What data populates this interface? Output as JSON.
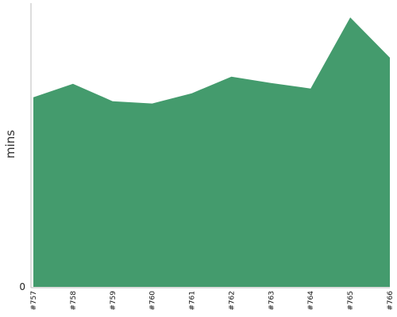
{
  "chart_data": {
    "type": "area",
    "categories": [
      "#757",
      "#758",
      "#759",
      "#760",
      "#761",
      "#762",
      "#763",
      "#764",
      "#765",
      "#766"
    ],
    "values": [
      240,
      257,
      235,
      232,
      245,
      266,
      258,
      251,
      341,
      290
    ],
    "title": "",
    "xlabel": "",
    "ylabel": "mins",
    "ylim": [
      0,
      358
    ],
    "y_tick_labels": [
      "0"
    ],
    "grid": false,
    "legend": "none",
    "fill_color": "#449b6d",
    "axis_color": "#bbbbbb"
  }
}
